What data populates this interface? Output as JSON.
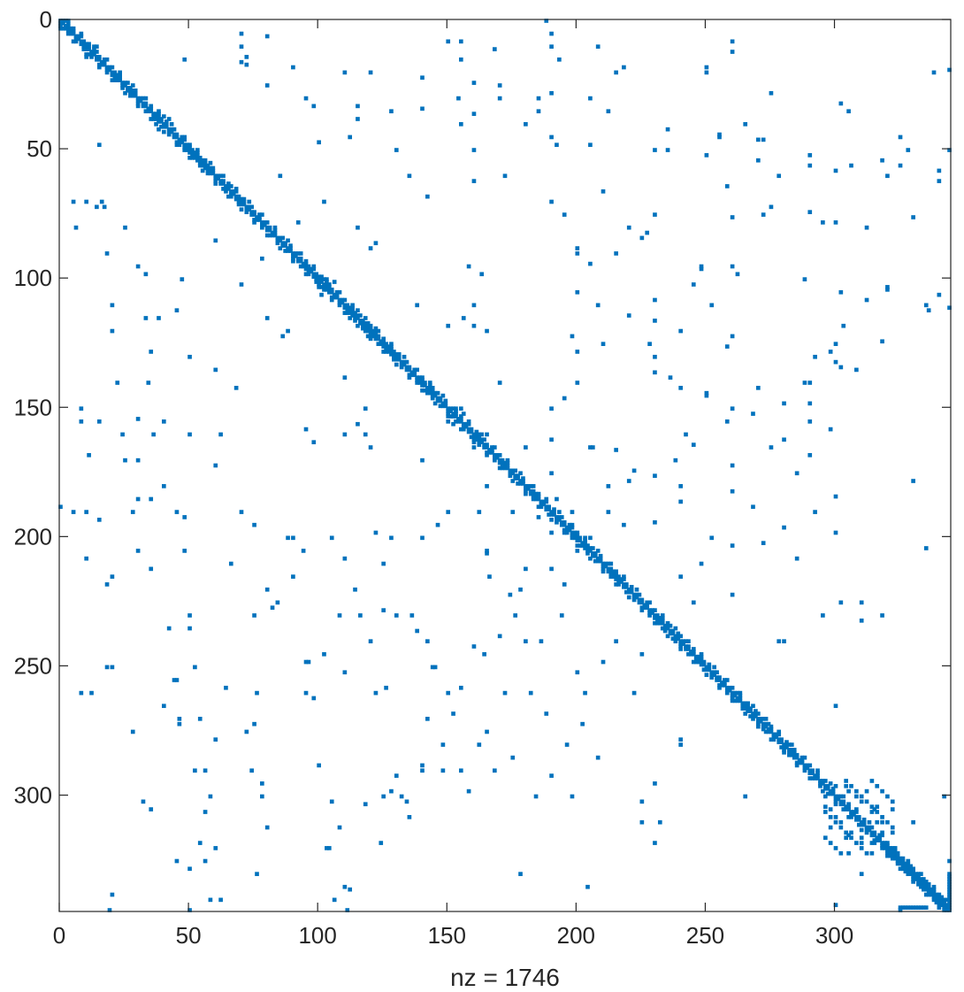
{
  "chart_data": {
    "type": "scatter",
    "subtype": "sparsity-pattern",
    "matrix_size": 345,
    "xlabel": "nz = 1746",
    "xlim": [
      0,
      345
    ],
    "ylim": [
      0,
      345
    ],
    "y_reversed": true,
    "x_ticks": [
      0,
      50,
      100,
      150,
      200,
      250,
      300
    ],
    "y_ticks": [
      0,
      50,
      100,
      150,
      200,
      250,
      300
    ],
    "x_tick_labels": [
      "0",
      "50",
      "100",
      "150",
      "200",
      "250",
      "300"
    ],
    "y_tick_labels": [
      "0",
      "50",
      "100",
      "150",
      "200",
      "250",
      "300"
    ],
    "marker_color": "#0072BD",
    "grid": false,
    "box": true,
    "offdiagonal_points": [
      [
        1,
        1
      ],
      [
        3,
        1
      ],
      [
        2,
        2
      ],
      [
        4,
        3
      ],
      [
        5,
        4
      ],
      [
        7,
        6
      ],
      [
        10,
        9
      ],
      [
        11,
        10
      ],
      [
        12,
        12
      ],
      [
        13,
        11
      ],
      [
        14,
        10
      ],
      [
        13,
        13
      ],
      [
        20,
        23
      ],
      [
        21,
        22
      ],
      [
        22,
        21
      ],
      [
        23,
        20
      ],
      [
        28,
        27
      ],
      [
        37,
        38
      ],
      [
        38,
        36
      ],
      [
        39,
        39
      ],
      [
        40,
        37
      ],
      [
        41,
        40
      ],
      [
        42,
        38
      ],
      [
        46,
        47
      ],
      [
        48,
        46
      ],
      [
        50,
        49
      ],
      [
        51,
        52
      ],
      [
        53,
        54
      ],
      [
        55,
        56
      ],
      [
        56,
        55
      ],
      [
        57,
        58
      ],
      [
        58,
        57
      ],
      [
        61,
        61
      ],
      [
        62,
        63
      ],
      [
        63,
        62
      ],
      [
        64,
        65
      ],
      [
        66,
        64
      ],
      [
        67,
        66
      ],
      [
        68,
        68
      ],
      [
        70,
        69
      ],
      [
        71,
        71
      ],
      [
        72,
        73
      ],
      [
        73,
        72
      ],
      [
        74,
        75
      ],
      [
        78,
        79
      ],
      [
        80,
        81
      ],
      [
        81,
        80
      ],
      [
        82,
        83
      ],
      [
        83,
        82
      ],
      [
        84,
        84
      ],
      [
        86,
        87
      ],
      [
        88,
        88
      ],
      [
        90,
        90
      ],
      [
        92,
        93
      ],
      [
        94,
        94
      ],
      [
        96,
        95
      ],
      [
        99,
        101
      ],
      [
        100,
        99
      ],
      [
        101,
        103
      ],
      [
        102,
        100
      ],
      [
        103,
        104
      ],
      [
        104,
        102
      ],
      [
        105,
        105
      ],
      [
        106,
        101
      ],
      [
        110,
        108
      ],
      [
        111,
        110
      ],
      [
        112,
        111
      ],
      [
        113,
        114
      ],
      [
        115,
        112
      ],
      [
        118,
        117
      ],
      [
        119,
        120
      ],
      [
        120,
        118
      ],
      [
        121,
        122
      ],
      [
        122,
        119
      ],
      [
        125,
        126
      ],
      [
        126,
        125
      ],
      [
        127,
        128
      ],
      [
        128,
        127
      ],
      [
        129,
        130
      ],
      [
        130,
        131
      ],
      [
        131,
        129
      ],
      [
        132,
        133
      ],
      [
        133,
        132
      ],
      [
        136,
        137
      ],
      [
        137,
        136
      ],
      [
        138,
        139
      ],
      [
        139,
        140
      ],
      [
        140,
        138
      ],
      [
        141,
        141
      ],
      [
        142,
        144
      ],
      [
        143,
        142
      ],
      [
        144,
        143
      ],
      [
        150,
        151
      ],
      [
        151,
        153
      ],
      [
        152,
        150
      ],
      [
        153,
        152
      ],
      [
        154,
        154
      ],
      [
        155,
        150
      ],
      [
        156,
        152
      ],
      [
        160,
        161
      ],
      [
        161,
        162
      ],
      [
        162,
        160
      ],
      [
        163,
        163
      ],
      [
        165,
        167
      ],
      [
        167,
        165
      ],
      [
        168,
        170
      ],
      [
        170,
        168
      ],
      [
        172,
        171
      ],
      [
        174,
        175
      ],
      [
        175,
        174
      ],
      [
        176,
        177
      ],
      [
        177,
        176
      ],
      [
        180,
        182
      ],
      [
        182,
        180
      ],
      [
        183,
        184
      ],
      [
        184,
        183
      ],
      [
        186,
        187
      ],
      [
        190,
        191
      ],
      [
        191,
        190
      ],
      [
        192,
        193
      ],
      [
        196,
        198
      ],
      [
        198,
        196
      ],
      [
        199,
        200
      ],
      [
        200,
        199
      ],
      [
        203,
        204
      ],
      [
        204,
        203
      ],
      [
        208,
        209
      ],
      [
        209,
        208
      ],
      [
        210,
        211
      ],
      [
        213,
        214
      ],
      [
        214,
        213
      ],
      [
        215,
        216
      ],
      [
        216,
        215
      ],
      [
        219,
        221
      ],
      [
        221,
        219
      ],
      [
        224,
        225
      ],
      [
        225,
        224
      ],
      [
        228,
        230
      ],
      [
        230,
        228
      ],
      [
        231,
        232
      ],
      [
        232,
        231
      ],
      [
        233,
        235
      ],
      [
        235,
        233
      ],
      [
        238,
        240
      ],
      [
        240,
        238
      ],
      [
        242,
        243
      ],
      [
        243,
        242
      ],
      [
        244,
        245
      ],
      [
        245,
        244
      ],
      [
        247,
        248
      ],
      [
        248,
        247
      ],
      [
        252,
        253
      ],
      [
        253,
        252
      ],
      [
        256,
        257
      ],
      [
        257,
        256
      ],
      [
        258,
        259
      ],
      [
        259,
        258
      ],
      [
        260,
        262
      ],
      [
        262,
        260
      ],
      [
        265,
        266
      ],
      [
        266,
        265
      ],
      [
        268,
        270
      ],
      [
        270,
        268
      ],
      [
        272,
        274
      ],
      [
        274,
        272
      ],
      [
        276,
        277
      ],
      [
        277,
        276
      ],
      [
        280,
        281
      ],
      [
        281,
        280
      ],
      [
        283,
        284
      ],
      [
        284,
        283
      ],
      [
        286,
        287
      ],
      [
        287,
        286
      ],
      [
        288,
        289
      ],
      [
        289,
        288
      ],
      [
        296,
        300
      ],
      [
        300,
        296
      ],
      [
        298,
        305
      ],
      [
        305,
        298
      ],
      [
        302,
        310
      ],
      [
        310,
        302
      ],
      [
        304,
        296
      ],
      [
        306,
        314
      ],
      [
        314,
        306
      ],
      [
        308,
        300
      ],
      [
        300,
        308
      ],
      [
        310,
        316
      ],
      [
        316,
        310
      ],
      [
        312,
        298
      ],
      [
        298,
        312
      ],
      [
        314,
        318
      ],
      [
        318,
        314
      ],
      [
        316,
        304
      ],
      [
        304,
        316
      ],
      [
        318,
        310
      ],
      [
        320,
        300
      ],
      [
        300,
        320
      ],
      [
        322,
        314
      ],
      [
        314,
        322
      ],
      [
        325,
        326
      ],
      [
        326,
        325
      ],
      [
        328,
        330
      ],
      [
        330,
        328
      ],
      [
        332,
        334
      ],
      [
        334,
        332
      ],
      [
        335,
        336
      ],
      [
        336,
        335
      ],
      [
        338,
        339
      ],
      [
        339,
        338
      ],
      [
        340,
        342
      ],
      [
        342,
        340
      ],
      [
        343,
        344
      ],
      [
        344,
        343
      ],
      [
        5,
        70
      ],
      [
        6,
        80
      ],
      [
        15,
        48
      ],
      [
        16,
        70
      ],
      [
        17,
        72
      ],
      [
        18,
        90
      ],
      [
        20,
        120
      ],
      [
        22,
        140
      ],
      [
        24,
        160
      ],
      [
        28,
        190
      ],
      [
        30,
        95
      ],
      [
        33,
        115
      ],
      [
        34,
        140
      ],
      [
        36,
        160
      ],
      [
        40,
        180
      ],
      [
        45,
        190
      ],
      [
        48,
        205
      ],
      [
        50,
        230
      ],
      [
        52,
        250
      ],
      [
        54,
        270
      ],
      [
        56,
        290
      ],
      [
        58,
        300
      ],
      [
        60,
        320
      ],
      [
        62,
        340
      ],
      [
        70,
        10
      ],
      [
        72,
        14
      ],
      [
        75,
        230
      ],
      [
        76,
        260
      ],
      [
        78,
        300
      ],
      [
        80,
        25
      ],
      [
        85,
        60
      ],
      [
        88,
        120
      ],
      [
        90,
        200
      ],
      [
        95,
        260
      ],
      [
        98,
        33
      ],
      [
        100,
        47
      ],
      [
        102,
        70
      ],
      [
        105,
        200
      ],
      [
        108,
        230
      ],
      [
        110,
        20
      ],
      [
        112,
        45
      ],
      [
        115,
        80
      ],
      [
        118,
        150
      ],
      [
        120,
        240
      ],
      [
        122,
        260
      ],
      [
        125,
        300
      ],
      [
        128,
        35
      ],
      [
        130,
        50
      ],
      [
        135,
        60
      ],
      [
        138,
        110
      ],
      [
        140,
        200
      ],
      [
        142,
        240
      ],
      [
        145,
        250
      ],
      [
        148,
        280
      ],
      [
        150,
        8
      ],
      [
        155,
        15
      ],
      [
        158,
        95
      ],
      [
        160,
        118
      ],
      [
        162,
        190
      ],
      [
        165,
        205
      ],
      [
        168,
        11
      ],
      [
        170,
        30
      ],
      [
        172,
        60
      ],
      [
        175,
        190
      ],
      [
        178,
        220
      ],
      [
        180,
        240
      ],
      [
        185,
        35
      ],
      [
        188,
        0
      ],
      [
        190,
        10
      ],
      [
        192,
        48
      ],
      [
        195,
        75
      ],
      [
        198,
        190
      ],
      [
        200,
        205
      ],
      [
        203,
        260
      ],
      [
        205,
        30
      ],
      [
        208,
        110
      ],
      [
        210,
        125
      ],
      [
        212,
        180
      ],
      [
        215,
        20
      ],
      [
        218,
        195
      ],
      [
        220,
        80
      ],
      [
        222,
        260
      ],
      [
        225,
        302
      ],
      [
        228,
        125
      ],
      [
        230,
        130
      ],
      [
        232,
        310
      ],
      [
        235,
        50
      ],
      [
        238,
        170
      ],
      [
        240,
        215
      ],
      [
        242,
        160
      ],
      [
        245,
        225
      ],
      [
        248,
        95
      ],
      [
        250,
        18
      ],
      [
        252,
        110
      ],
      [
        255,
        45
      ],
      [
        258,
        155
      ],
      [
        260,
        8
      ],
      [
        262,
        98
      ],
      [
        265,
        40
      ],
      [
        268,
        265
      ],
      [
        270,
        46
      ],
      [
        272,
        75
      ],
      [
        275,
        165
      ],
      [
        278,
        240
      ],
      [
        280,
        240
      ],
      [
        282,
        280
      ],
      [
        285,
        175
      ],
      [
        288,
        140
      ],
      [
        290,
        155
      ],
      [
        292,
        190
      ],
      [
        295,
        230
      ],
      [
        298,
        128
      ],
      [
        300,
        265
      ],
      [
        302,
        105
      ],
      [
        305,
        35
      ],
      [
        306,
        56
      ],
      [
        308,
        135
      ],
      [
        310,
        225
      ],
      [
        315,
        305
      ],
      [
        318,
        230
      ],
      [
        320,
        103
      ],
      [
        322,
        305
      ],
      [
        325,
        45
      ],
      [
        328,
        50
      ],
      [
        330,
        310
      ],
      [
        335,
        110
      ],
      [
        338,
        20
      ],
      [
        340,
        340
      ],
      [
        342,
        300
      ],
      [
        344,
        111
      ],
      [
        344,
        50
      ],
      [
        344,
        19
      ],
      [
        344,
        325
      ],
      [
        5,
        190
      ],
      [
        8,
        155
      ],
      [
        10,
        208
      ],
      [
        12,
        260
      ],
      [
        15,
        193
      ],
      [
        18,
        218
      ],
      [
        20,
        250
      ],
      [
        25,
        170
      ],
      [
        28,
        275
      ],
      [
        30,
        185
      ],
      [
        32,
        302
      ],
      [
        35,
        212
      ],
      [
        38,
        115
      ],
      [
        40,
        155
      ],
      [
        42,
        235
      ],
      [
        44,
        255
      ],
      [
        46,
        272
      ],
      [
        48,
        345
      ],
      [
        50,
        160
      ],
      [
        52,
        290
      ],
      [
        54,
        318
      ],
      [
        56,
        325
      ],
      [
        58,
        340
      ],
      [
        60,
        278
      ],
      [
        62,
        160
      ],
      [
        64,
        258
      ],
      [
        66,
        210
      ],
      [
        68,
        142
      ],
      [
        70,
        190
      ],
      [
        72,
        275
      ],
      [
        74,
        290
      ],
      [
        76,
        330
      ],
      [
        78,
        295
      ],
      [
        80,
        312
      ],
      [
        82,
        227
      ],
      [
        84,
        225
      ],
      [
        86,
        122
      ],
      [
        88,
        200
      ],
      [
        90,
        215
      ],
      [
        92,
        78
      ],
      [
        94,
        205
      ],
      [
        96,
        248
      ],
      [
        98,
        163
      ],
      [
        100,
        288
      ],
      [
        102,
        245
      ],
      [
        104,
        320
      ],
      [
        106,
        340
      ],
      [
        108,
        312
      ],
      [
        110,
        160
      ],
      [
        112,
        336
      ],
      [
        114,
        220
      ],
      [
        116,
        230
      ],
      [
        118,
        303
      ],
      [
        120,
        165
      ],
      [
        122,
        198
      ],
      [
        124,
        318
      ],
      [
        126,
        258
      ],
      [
        128,
        200
      ],
      [
        130,
        292
      ],
      [
        132,
        300
      ],
      [
        134,
        302
      ],
      [
        136,
        230
      ],
      [
        138,
        236
      ],
      [
        140,
        290
      ],
      [
        142,
        270
      ],
      [
        144,
        250
      ],
      [
        146,
        195
      ],
      [
        148,
        290
      ],
      [
        150,
        260
      ],
      [
        152,
        268
      ],
      [
        154,
        30
      ],
      [
        156,
        115
      ],
      [
        158,
        298
      ],
      [
        160,
        165
      ],
      [
        162,
        280
      ],
      [
        164,
        245
      ],
      [
        166,
        215
      ],
      [
        168,
        290
      ],
      [
        170,
        140
      ],
      [
        172,
        260
      ],
      [
        174,
        222
      ],
      [
        176,
        230
      ],
      [
        178,
        330
      ],
      [
        180,
        165
      ],
      [
        182,
        260
      ],
      [
        184,
        300
      ],
      [
        186,
        240
      ],
      [
        188,
        268
      ],
      [
        190,
        150
      ],
      [
        192,
        185
      ],
      [
        194,
        230
      ],
      [
        196,
        280
      ],
      [
        198,
        300
      ],
      [
        200,
        252
      ],
      [
        202,
        272
      ],
      [
        204,
        335
      ],
      [
        206,
        165
      ],
      [
        208,
        285
      ],
      [
        210,
        248
      ],
      [
        212,
        190
      ]
    ]
  }
}
